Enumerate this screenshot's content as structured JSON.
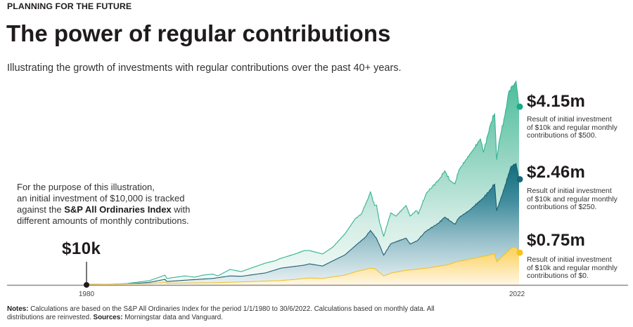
{
  "header": {
    "eyebrow": "PLANNING FOR THE FUTURE",
    "title": "The power of regular contributions",
    "subtitle": "Illustrating the growth of investments with regular contributions over the past 40+ years."
  },
  "intro_note": {
    "line1": "For the purpose of this illustration,",
    "line2": "an initial investment of $10,000 is tracked",
    "line3_pre": "against the ",
    "line3_bold": "S&P All Ordinaries Index",
    "line3_post": " with",
    "line4": "different amounts of monthly contributions."
  },
  "results": [
    {
      "value_label": "$4.15m",
      "desc_lines": [
        "Result of initial investment",
        "of $10k and regular monthly",
        "contributions of $500."
      ]
    },
    {
      "value_label": "$2.46m",
      "desc_lines": [
        "Result of initial investment",
        "of $10k and regular monthly",
        "contributions of $250."
      ]
    },
    {
      "value_label": "$0.75m",
      "desc_lines": [
        "Result of initial investment",
        "of $10k and regular monthly",
        "contributions of $0."
      ]
    }
  ],
  "footnote": {
    "notes_label": "Notes:",
    "notes_text": " Calculations are based on the S&P All Ordinaries Index for the period 1/1/1980 to 30/6/2022. Calculations based on monthly data. All",
    "line2_pre": "distributions are reinvested. ",
    "sources_label": "Sources:",
    "sources_text": " Morningstar data and Vanguard."
  },
  "chart_data": {
    "type": "area",
    "title": "The power of regular contributions",
    "xlabel": "",
    "ylabel": "",
    "x_unit": "year",
    "y_unit": "$ millions",
    "x_range": [
      1980,
      2022.5
    ],
    "ylim": [
      0,
      4.75
    ],
    "x_ticks": [
      1980,
      2022.3
    ],
    "x_tick_labels": [
      "1980",
      "2022"
    ],
    "grid": false,
    "legend": "none (direct labels at right end)",
    "start_annotation": {
      "year": 1980,
      "value": 0.01,
      "label": "$10k"
    },
    "series": [
      {
        "name": "$10k initial + $500 monthly",
        "end_value": 4.15,
        "end_label": "$4.15m",
        "line_color": "#35b293",
        "dot_color": "#1aa889",
        "points": [
          [
            1980.0,
            0.01
          ],
          [
            1981.9,
            0.01
          ],
          [
            1983.9,
            0.03
          ],
          [
            1986.2,
            0.1
          ],
          [
            1987.4,
            0.2
          ],
          [
            1987.7,
            0.23
          ],
          [
            1987.9,
            0.15
          ],
          [
            1988.8,
            0.18
          ],
          [
            1989.7,
            0.21
          ],
          [
            1990.6,
            0.18
          ],
          [
            1991.5,
            0.23
          ],
          [
            1992.4,
            0.25
          ],
          [
            1992.9,
            0.21
          ],
          [
            1994.1,
            0.36
          ],
          [
            1995.2,
            0.31
          ],
          [
            1996.4,
            0.41
          ],
          [
            1997.6,
            0.51
          ],
          [
            1998.5,
            0.56
          ],
          [
            1999.1,
            0.62
          ],
          [
            2000.5,
            0.72
          ],
          [
            2001.4,
            0.8
          ],
          [
            2001.9,
            0.8
          ],
          [
            2003.2,
            0.72
          ],
          [
            2004.2,
            0.88
          ],
          [
            2005.4,
            1.19
          ],
          [
            2006.4,
            1.54
          ],
          [
            2007.0,
            1.65
          ],
          [
            2007.6,
            1.98
          ],
          [
            2007.9,
            2.17
          ],
          [
            2008.3,
            1.85
          ],
          [
            2008.5,
            1.86
          ],
          [
            2008.8,
            1.45
          ],
          [
            2009.2,
            1.13
          ],
          [
            2009.9,
            1.68
          ],
          [
            2010.4,
            1.6
          ],
          [
            2011.4,
            1.85
          ],
          [
            2011.8,
            1.6
          ],
          [
            2012.4,
            1.73
          ],
          [
            2012.6,
            1.65
          ],
          [
            2013.4,
            2.14
          ],
          [
            2014.7,
            2.47
          ],
          [
            2015.2,
            2.66
          ],
          [
            2015.7,
            2.43
          ],
          [
            2016.2,
            2.35
          ],
          [
            2016.6,
            2.68
          ],
          [
            2017.3,
            2.92
          ],
          [
            2018.0,
            3.15
          ],
          [
            2018.7,
            3.4
          ],
          [
            2019.0,
            3.09
          ],
          [
            2019.7,
            3.74
          ],
          [
            2020.1,
            3.99
          ],
          [
            2020.3,
            2.92
          ],
          [
            2020.6,
            3.4
          ],
          [
            2021.1,
            3.94
          ],
          [
            2021.5,
            4.51
          ],
          [
            2021.9,
            4.64
          ],
          [
            2022.2,
            4.75
          ],
          [
            2022.5,
            4.15
          ]
        ]
      },
      {
        "name": "$10k initial + $250 monthly",
        "end_value": 2.46,
        "end_label": "$2.46m",
        "line_color": "#1d5f70",
        "dot_color": "#16687a",
        "points": [
          [
            1980.0,
            0.01
          ],
          [
            1983.9,
            0.02
          ],
          [
            1986.2,
            0.06
          ],
          [
            1987.7,
            0.13
          ],
          [
            1987.9,
            0.08
          ],
          [
            1989.7,
            0.11
          ],
          [
            1992.4,
            0.15
          ],
          [
            1994.1,
            0.21
          ],
          [
            1995.2,
            0.2
          ],
          [
            1997.6,
            0.28
          ],
          [
            1999.1,
            0.39
          ],
          [
            2001.4,
            0.46
          ],
          [
            2001.9,
            0.49
          ],
          [
            2003.2,
            0.44
          ],
          [
            2004.2,
            0.56
          ],
          [
            2005.4,
            0.7
          ],
          [
            2006.5,
            0.93
          ],
          [
            2007.4,
            1.11
          ],
          [
            2007.9,
            1.27
          ],
          [
            2008.5,
            1.08
          ],
          [
            2008.8,
            0.92
          ],
          [
            2009.2,
            0.69
          ],
          [
            2009.9,
            0.96
          ],
          [
            2011.4,
            1.09
          ],
          [
            2011.8,
            0.95
          ],
          [
            2012.5,
            1.03
          ],
          [
            2013.3,
            1.24
          ],
          [
            2014.6,
            1.44
          ],
          [
            2015.2,
            1.58
          ],
          [
            2016.2,
            1.41
          ],
          [
            2016.6,
            1.57
          ],
          [
            2017.6,
            1.73
          ],
          [
            2019.0,
            2.03
          ],
          [
            2019.7,
            2.22
          ],
          [
            2020.1,
            2.35
          ],
          [
            2020.3,
            1.73
          ],
          [
            2020.9,
            2.14
          ],
          [
            2021.7,
            2.75
          ],
          [
            2022.2,
            2.83
          ],
          [
            2022.5,
            2.46
          ]
        ]
      },
      {
        "name": "$10k initial + $0 monthly",
        "end_value": 0.75,
        "end_label": "$0.75m",
        "line_color": "#f3c12b",
        "dot_color": "#f7c21b",
        "points": [
          [
            1980.0,
            0.01
          ],
          [
            1986.2,
            0.03
          ],
          [
            1987.7,
            0.06
          ],
          [
            1987.9,
            0.04
          ],
          [
            1992.4,
            0.05
          ],
          [
            1999.1,
            0.1
          ],
          [
            2001.9,
            0.16
          ],
          [
            2003.2,
            0.15
          ],
          [
            2005.4,
            0.23
          ],
          [
            2006.5,
            0.31
          ],
          [
            2007.9,
            0.39
          ],
          [
            2008.3,
            0.38
          ],
          [
            2009.2,
            0.21
          ],
          [
            2010.0,
            0.28
          ],
          [
            2011.4,
            0.34
          ],
          [
            2013.4,
            0.39
          ],
          [
            2015.5,
            0.47
          ],
          [
            2016.4,
            0.54
          ],
          [
            2018.5,
            0.64
          ],
          [
            2020.1,
            0.72
          ],
          [
            2020.3,
            0.54
          ],
          [
            2020.9,
            0.67
          ],
          [
            2021.8,
            0.87
          ],
          [
            2022.2,
            0.88
          ],
          [
            2022.5,
            0.75
          ]
        ]
      }
    ]
  }
}
